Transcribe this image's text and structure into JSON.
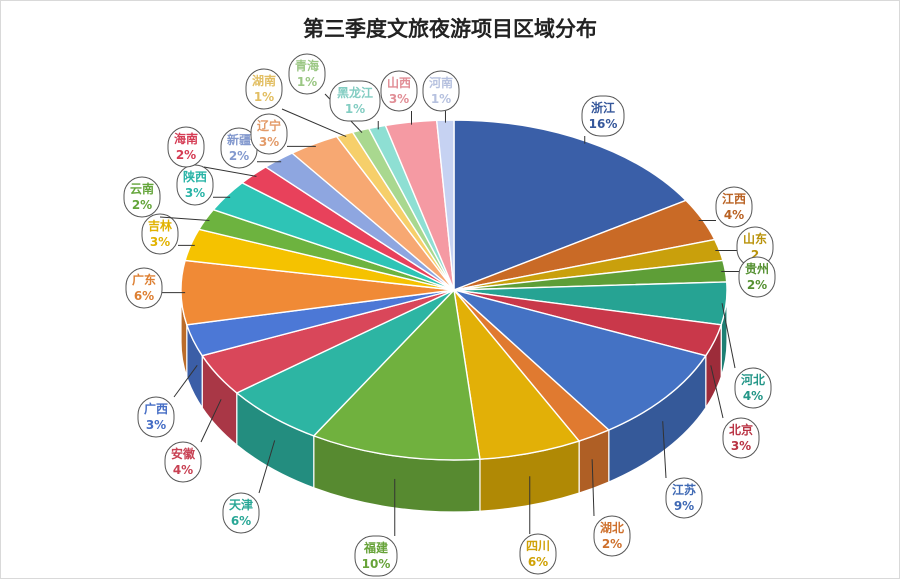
{
  "chart_data": {
    "type": "pie",
    "title": "第三季度文旅夜游项目区域分布",
    "slices": [
      {
        "label": "浙江",
        "value": 16,
        "display": "16%",
        "color": "#3a5fa8"
      },
      {
        "label": "江西",
        "value": 4,
        "display": "4%",
        "color": "#c96a26"
      },
      {
        "label": "山东",
        "value": 2,
        "display": "2",
        "color": "#c9a00c"
      },
      {
        "label": "贵州",
        "value": 2,
        "display": "2%",
        "color": "#5e9e37"
      },
      {
        "label": "河北",
        "value": 4,
        "display": "4%",
        "color": "#26a393"
      },
      {
        "label": "北京",
        "value": 3,
        "display": "3%",
        "color": "#c9384a"
      },
      {
        "label": "江苏",
        "value": 9,
        "display": "9%",
        "color": "#4472c4"
      },
      {
        "label": "湖北",
        "value": 2,
        "display": "2%",
        "color": "#e07a30"
      },
      {
        "label": "四川",
        "value": 6,
        "display": "6%",
        "color": "#e2b007"
      },
      {
        "label": "福建",
        "value": 10,
        "display": "10%",
        "color": "#70b13e"
      },
      {
        "label": "天津",
        "value": 6,
        "display": "6%",
        "color": "#2db5a3"
      },
      {
        "label": "安徽",
        "value": 4,
        "display": "4%",
        "color": "#d9475a"
      },
      {
        "label": "广西",
        "value": 3,
        "display": "3%",
        "color": "#4c78d6"
      },
      {
        "label": "广东",
        "value": 6,
        "display": "6%",
        "color": "#f08a36"
      },
      {
        "label": "吉林",
        "value": 3,
        "display": "3%",
        "color": "#f5c200"
      },
      {
        "label": "云南",
        "value": 2,
        "display": "2%",
        "color": "#6db33f"
      },
      {
        "label": "陕西",
        "value": 3,
        "display": "3%",
        "color": "#2ec4b6"
      },
      {
        "label": "海南",
        "value": 2,
        "display": "2%",
        "color": "#e8415b"
      },
      {
        "label": "新疆",
        "value": 2,
        "display": "2%",
        "color": "#8ea6e0"
      },
      {
        "label": "辽宁",
        "value": 3,
        "display": "3%",
        "color": "#f7a872"
      },
      {
        "label": "湖南",
        "value": 1,
        "display": "1%",
        "color": "#f6cf6a"
      },
      {
        "label": "青海",
        "value": 1,
        "display": "1%",
        "color": "#a9d88f"
      },
      {
        "label": "黑龙江",
        "value": 1,
        "display": "1%",
        "color": "#8edfd3"
      },
      {
        "label": "山西",
        "value": 3,
        "display": "3%",
        "color": "#f59aa3"
      },
      {
        "label": "河南",
        "value": 1,
        "display": "1%",
        "color": "#c6d2f2"
      }
    ]
  }
}
